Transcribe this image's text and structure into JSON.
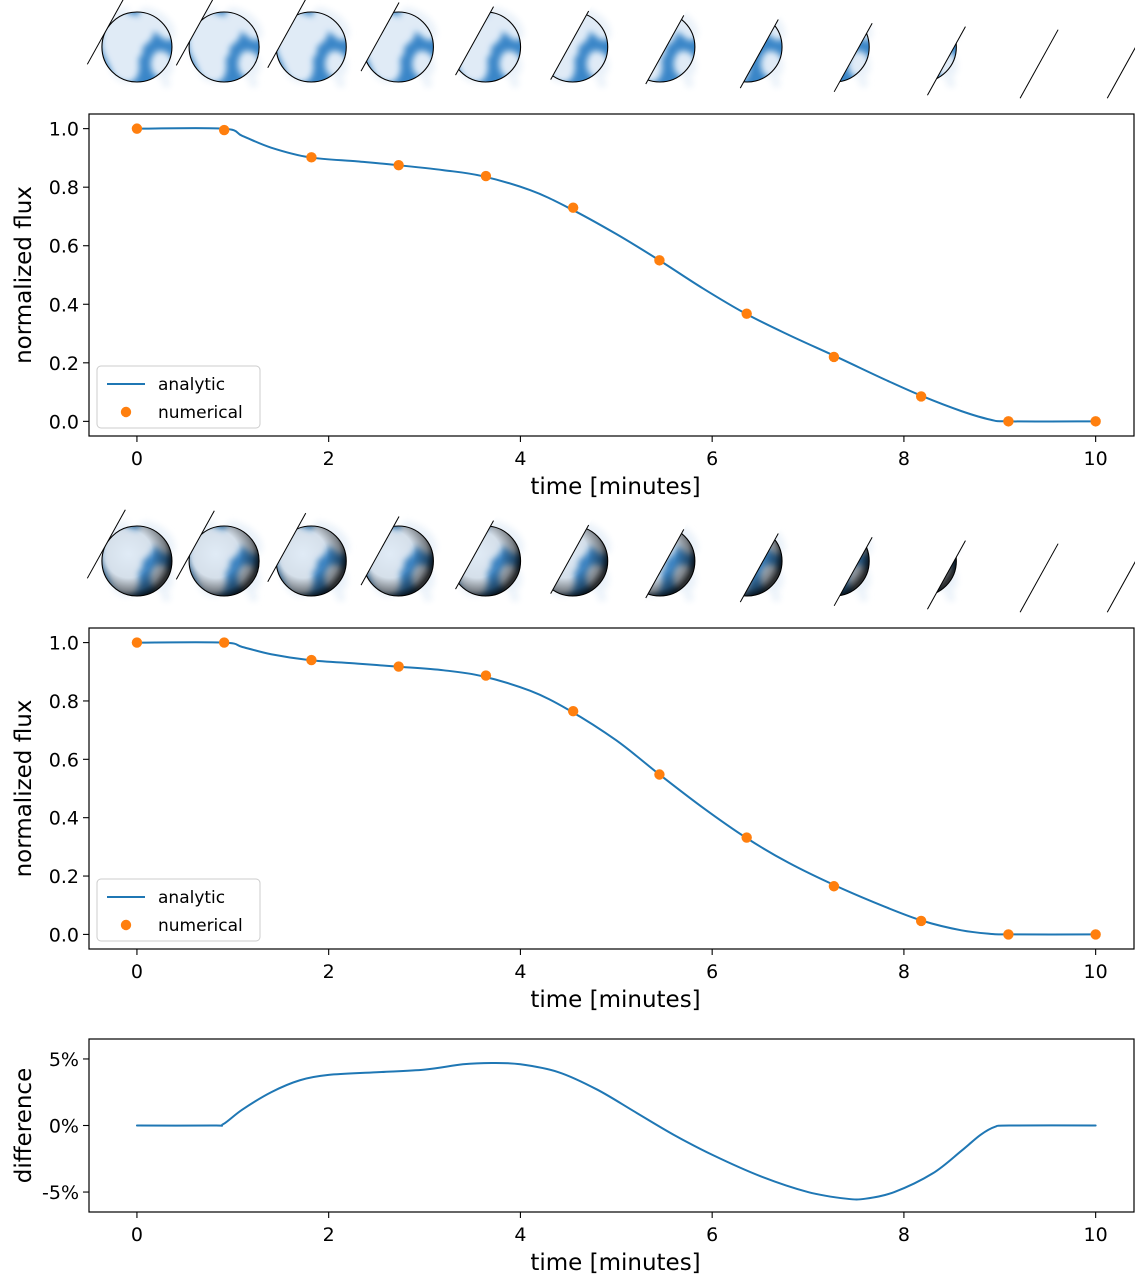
{
  "colors": {
    "analytic": "#1f77b4",
    "numerical": "#ff7f0e",
    "planet_ocean": "#3a86c8",
    "planet_land": "#e9f1f9",
    "planet_shaded_edge": "#0f2438"
  },
  "thumbnail_icons": [
    "planet-phase-icon"
  ],
  "chart_data": [
    {
      "type": "line",
      "xlabel": "time [minutes]",
      "ylabel": "normalized flux",
      "xlim": [
        -0.5,
        10.4
      ],
      "ylim": [
        -0.05,
        1.05
      ],
      "xticks": [
        0,
        2,
        4,
        6,
        8,
        10
      ],
      "yticks": [
        0.0,
        0.2,
        0.4,
        0.6,
        0.8,
        1.0
      ],
      "xtick_labels": [
        "0",
        "2",
        "4",
        "6",
        "8",
        "10"
      ],
      "ytick_labels": [
        "0.0",
        "0.2",
        "0.4",
        "0.6",
        "0.8",
        "1.0"
      ],
      "legend": {
        "location": "lower-left",
        "entries": [
          "analytic",
          "numerical"
        ]
      },
      "grid": false,
      "series": [
        {
          "name": "analytic",
          "style": "line",
          "x": [
            0,
            0.9,
            1.1,
            1.4,
            1.8,
            2.3,
            2.7,
            3.2,
            3.6,
            4.1,
            4.5,
            5.0,
            5.45,
            5.9,
            6.35,
            6.8,
            7.3,
            7.8,
            8.2,
            8.6,
            8.9,
            9.1,
            10
          ],
          "y": [
            1.0,
            1.0,
            0.975,
            0.935,
            0.902,
            0.888,
            0.876,
            0.858,
            0.838,
            0.79,
            0.73,
            0.64,
            0.55,
            0.455,
            0.368,
            0.295,
            0.22,
            0.143,
            0.085,
            0.035,
            0.006,
            0.0,
            0.0
          ]
        },
        {
          "name": "numerical",
          "style": "markers",
          "x": [
            0,
            0.91,
            1.82,
            2.73,
            3.64,
            4.55,
            5.45,
            6.36,
            7.27,
            8.18,
            9.09,
            10
          ],
          "y": [
            1.0,
            0.995,
            0.902,
            0.875,
            0.838,
            0.73,
            0.55,
            0.368,
            0.22,
            0.085,
            0.0,
            0.0
          ]
        }
      ],
      "thumbnails": {
        "count": 12,
        "shading": "flat",
        "visible_fraction": [
          1.0,
          0.97,
          0.9,
          0.8,
          0.68,
          0.55,
          0.42,
          0.3,
          0.19,
          0.09,
          0.0,
          0.0
        ]
      }
    },
    {
      "type": "line",
      "xlabel": "time [minutes]",
      "ylabel": "normalized flux",
      "xlim": [
        -0.5,
        10.4
      ],
      "ylim": [
        -0.05,
        1.05
      ],
      "xticks": [
        0,
        2,
        4,
        6,
        8,
        10
      ],
      "yticks": [
        0.0,
        0.2,
        0.4,
        0.6,
        0.8,
        1.0
      ],
      "xtick_labels": [
        "0",
        "2",
        "4",
        "6",
        "8",
        "10"
      ],
      "ytick_labels": [
        "0.0",
        "0.2",
        "0.4",
        "0.6",
        "0.8",
        "1.0"
      ],
      "legend": {
        "location": "lower-left",
        "entries": [
          "analytic",
          "numerical"
        ]
      },
      "grid": false,
      "series": [
        {
          "name": "analytic",
          "style": "line",
          "x": [
            0,
            0.9,
            1.1,
            1.4,
            1.8,
            2.3,
            2.7,
            3.2,
            3.6,
            4.1,
            4.5,
            5.0,
            5.45,
            5.9,
            6.35,
            6.8,
            7.3,
            7.8,
            8.2,
            8.6,
            8.9,
            9.1,
            10
          ],
          "y": [
            1.0,
            1.0,
            0.985,
            0.96,
            0.94,
            0.928,
            0.918,
            0.905,
            0.885,
            0.835,
            0.77,
            0.665,
            0.548,
            0.435,
            0.332,
            0.245,
            0.165,
            0.095,
            0.046,
            0.014,
            0.002,
            0.0,
            0.0
          ]
        },
        {
          "name": "numerical",
          "style": "markers",
          "x": [
            0,
            0.91,
            1.82,
            2.73,
            3.64,
            4.55,
            5.45,
            6.36,
            7.27,
            8.18,
            9.09,
            10
          ],
          "y": [
            1.0,
            1.0,
            0.94,
            0.918,
            0.887,
            0.765,
            0.548,
            0.332,
            0.165,
            0.046,
            0.0,
            0.0
          ]
        }
      ],
      "thumbnails": {
        "count": 12,
        "shading": "limb-darkened",
        "visible_fraction": [
          1.0,
          0.97,
          0.9,
          0.8,
          0.68,
          0.55,
          0.42,
          0.3,
          0.19,
          0.09,
          0.0,
          0.0
        ]
      }
    },
    {
      "type": "line",
      "xlabel": "time [minutes]",
      "ylabel": "difference",
      "xlim": [
        -0.5,
        10.4
      ],
      "ylim": [
        -6.5,
        6.5
      ],
      "xticks": [
        0,
        2,
        4,
        6,
        8,
        10
      ],
      "yticks": [
        -5,
        0,
        5
      ],
      "xtick_labels": [
        "0",
        "2",
        "4",
        "6",
        "8",
        "10"
      ],
      "ytick_labels": [
        "-5%",
        "0%",
        "5%"
      ],
      "grid": false,
      "series": [
        {
          "style": "line",
          "x": [
            0,
            0.8,
            0.9,
            1.1,
            1.4,
            1.7,
            2.0,
            2.5,
            3.0,
            3.4,
            3.7,
            4.0,
            4.4,
            4.8,
            5.2,
            5.6,
            6.0,
            6.5,
            7.0,
            7.4,
            7.6,
            7.9,
            8.3,
            8.6,
            8.8,
            8.95,
            9.1,
            10
          ],
          "y": [
            0,
            0,
            0.1,
            1.2,
            2.5,
            3.4,
            3.8,
            4.0,
            4.2,
            4.6,
            4.7,
            4.6,
            4.0,
            2.7,
            1.0,
            -0.7,
            -2.2,
            -3.8,
            -5.0,
            -5.5,
            -5.5,
            -5.0,
            -3.6,
            -1.9,
            -0.7,
            -0.1,
            0,
            0
          ]
        }
      ]
    }
  ]
}
